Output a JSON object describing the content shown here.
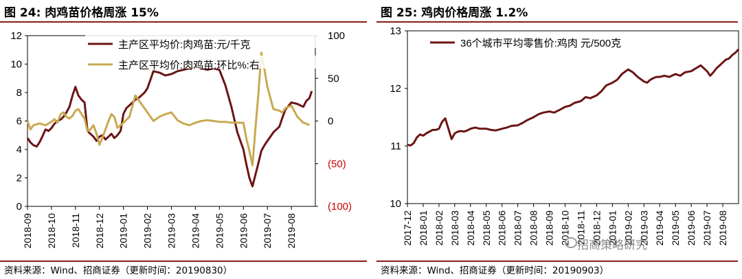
{
  "colors": {
    "rule": "#8b1a1a",
    "maroon": "#6b1414",
    "gold": "#c8a951",
    "neg_label": "#cc0000"
  },
  "left_panel": {
    "title": "图 24:  肉鸡苗价格周涨 15%",
    "source": "资料来源：Wind、招商证券（更新时间：20190830）"
  },
  "right_panel": {
    "title": "图 25:  鸡肉价格周涨 1.2%",
    "source": "资料来源：Wind、招商证券（更新时间：20190903）"
  },
  "watermark": {
    "text": "招商策略研究",
    "icon": "wechat-icon"
  },
  "chart_data": [
    {
      "type": "line",
      "x_ticks": [
        "2018-09",
        "2018-10",
        "2018-11",
        "2018-12",
        "2019-01",
        "2019-02",
        "2019-03",
        "2019-04",
        "2019-05",
        "2019-06",
        "2019-07",
        "2019-08"
      ],
      "y_left_ticks": [
        "0",
        "2",
        "4",
        "6",
        "8",
        "10",
        "12"
      ],
      "y_right_ticks": [
        "(100)",
        "(50)",
        "0",
        "50",
        "100"
      ],
      "ylim_left": [
        0,
        12
      ],
      "ylim_right": [
        -100,
        100
      ],
      "xlim": [
        0,
        12
      ],
      "legend_position": "top-right",
      "series": [
        {
          "name": "主产区平均价:肉鸡苗:元/千克",
          "axis": "left",
          "color": "#6b1414",
          "x": [
            0,
            0.12,
            0.25,
            0.38,
            0.5,
            0.62,
            0.75,
            0.88,
            1.0,
            1.12,
            1.25,
            1.38,
            1.5,
            1.62,
            1.75,
            1.88,
            2.0,
            2.12,
            2.25,
            2.38,
            2.5,
            2.62,
            2.75,
            2.88,
            3.0,
            3.12,
            3.25,
            3.38,
            3.5,
            3.62,
            3.75,
            3.88,
            4.0,
            4.12,
            4.25,
            4.38,
            4.5,
            4.62,
            4.75,
            4.88,
            5.0,
            5.25,
            5.5,
            5.75,
            6.0,
            6.25,
            6.5,
            6.75,
            7.0,
            7.25,
            7.5,
            7.75,
            8.0,
            8.25,
            8.5,
            8.75,
            9.0,
            9.12,
            9.25,
            9.38,
            9.5,
            9.62,
            9.75,
            9.88,
            10.0,
            10.25,
            10.5,
            10.62,
            10.75,
            11.0,
            11.25,
            11.5,
            11.62,
            11.75,
            11.85
          ],
          "values": [
            4.8,
            4.5,
            4.3,
            4.2,
            4.5,
            4.9,
            5.4,
            5.3,
            5.5,
            5.8,
            6.0,
            6.1,
            6.3,
            6.6,
            7.0,
            7.8,
            8.4,
            7.8,
            7.5,
            7.3,
            5.3,
            5.1,
            4.9,
            4.6,
            4.9,
            5.0,
            4.7,
            4.9,
            5.1,
            4.8,
            5.0,
            5.3,
            6.5,
            6.9,
            7.1,
            7.3,
            7.5,
            7.6,
            7.8,
            8.0,
            8.3,
            9.5,
            9.4,
            9.2,
            9.3,
            9.5,
            9.6,
            9.7,
            9.8,
            9.7,
            9.6,
            9.7,
            9.6,
            8.5,
            7.0,
            5.2,
            4.0,
            3.0,
            2.0,
            1.4,
            2.2,
            3.0,
            3.9,
            4.3,
            4.6,
            5.2,
            5.6,
            6.2,
            6.8,
            7.3,
            7.2,
            7.0,
            7.4,
            7.6,
            8.1
          ]
        },
        {
          "name": "主产区平均价:肉鸡苗:环比%:右",
          "axis": "right",
          "color": "#c8a951",
          "x": [
            0,
            0.12,
            0.25,
            0.5,
            0.75,
            1.0,
            1.12,
            1.25,
            1.38,
            1.5,
            1.62,
            1.75,
            1.88,
            2.0,
            2.12,
            2.25,
            2.38,
            2.5,
            2.62,
            2.75,
            2.88,
            3.0,
            3.12,
            3.25,
            3.38,
            3.5,
            3.62,
            3.75,
            3.88,
            4.0,
            4.25,
            4.5,
            4.75,
            5.0,
            5.25,
            5.5,
            5.75,
            6.0,
            6.25,
            6.5,
            6.75,
            7.0,
            7.25,
            7.5,
            7.75,
            8.0,
            8.25,
            8.5,
            8.75,
            9.0,
            9.12,
            9.25,
            9.38,
            9.5,
            9.62,
            9.75,
            9.88,
            10.0,
            10.25,
            10.5,
            10.62,
            10.75,
            11.0,
            11.25,
            11.5,
            11.62,
            11.75
          ],
          "values": [
            0,
            -10,
            -5,
            -3,
            -5,
            -1,
            2,
            -2,
            8,
            10,
            5,
            3,
            6,
            12,
            14,
            8,
            3,
            -12,
            -10,
            -5,
            -15,
            -28,
            -20,
            -10,
            0,
            8,
            5,
            -8,
            -5,
            -2,
            5,
            30,
            20,
            10,
            0,
            5,
            8,
            10,
            1,
            -3,
            -5,
            -2,
            0,
            1,
            0,
            -1,
            -1,
            -2,
            -2,
            -2,
            -20,
            -35,
            -52,
            -10,
            30,
            80,
            60,
            40,
            14,
            12,
            10,
            15,
            18,
            5,
            -2,
            -3,
            -5
          ]
        }
      ]
    },
    {
      "type": "line",
      "x_ticks": [
        "2017-12",
        "2018-01",
        "2018-02",
        "2018-03",
        "2018-04",
        "2018-05",
        "2018-06",
        "2018-07",
        "2018-08",
        "2018-09",
        "2018-10",
        "2018-11",
        "2018-12",
        "2019-01",
        "2019-02",
        "2019-03",
        "2019-04",
        "2019-05",
        "2019-06",
        "2019-07",
        "2019-08"
      ],
      "y_ticks": [
        "10",
        "11",
        "12",
        "13"
      ],
      "ylim": [
        10,
        13
      ],
      "xlim": [
        0,
        21
      ],
      "legend_position": "top-left",
      "series": [
        {
          "name": "36个城市平均零售价:鸡肉 元/500克",
          "color": "#6b1414",
          "x": [
            0,
            0.2,
            0.4,
            0.6,
            0.8,
            1.0,
            1.2,
            1.4,
            1.6,
            1.8,
            2.0,
            2.2,
            2.4,
            2.6,
            2.8,
            3.0,
            3.2,
            3.4,
            3.6,
            3.8,
            4.0,
            4.3,
            4.6,
            5.0,
            5.3,
            5.6,
            6.0,
            6.3,
            6.6,
            7.0,
            7.3,
            7.6,
            8.0,
            8.3,
            8.6,
            9.0,
            9.3,
            9.6,
            10.0,
            10.3,
            10.6,
            11.0,
            11.3,
            11.6,
            12.0,
            12.3,
            12.6,
            13.0,
            13.3,
            13.6,
            14.0,
            14.3,
            14.6,
            15.0,
            15.2,
            15.4,
            15.6,
            15.8,
            16.0,
            16.3,
            16.6,
            17.0,
            17.3,
            17.6,
            18.0,
            18.3,
            18.6,
            19.0,
            19.2,
            19.4,
            19.6,
            19.8,
            20.0,
            20.2,
            20.4,
            20.6,
            20.8,
            21.0
          ],
          "values": [
            11.02,
            11.01,
            11.05,
            11.15,
            11.2,
            11.18,
            11.22,
            11.25,
            11.28,
            11.28,
            11.3,
            11.42,
            11.48,
            11.3,
            11.12,
            11.22,
            11.25,
            11.26,
            11.25,
            11.27,
            11.3,
            11.32,
            11.3,
            11.3,
            11.28,
            11.27,
            11.3,
            11.32,
            11.35,
            11.36,
            11.4,
            11.45,
            11.5,
            11.55,
            11.58,
            11.6,
            11.58,
            11.62,
            11.68,
            11.7,
            11.75,
            11.78,
            11.85,
            11.83,
            11.88,
            11.95,
            12.05,
            12.1,
            12.15,
            12.25,
            12.33,
            12.28,
            12.2,
            12.12,
            12.1,
            12.15,
            12.18,
            12.2,
            12.2,
            12.22,
            12.2,
            12.25,
            12.22,
            12.28,
            12.3,
            12.35,
            12.4,
            12.3,
            12.22,
            12.28,
            12.35,
            12.4,
            12.45,
            12.5,
            12.52,
            12.58,
            12.62,
            12.68
          ]
        }
      ]
    }
  ]
}
